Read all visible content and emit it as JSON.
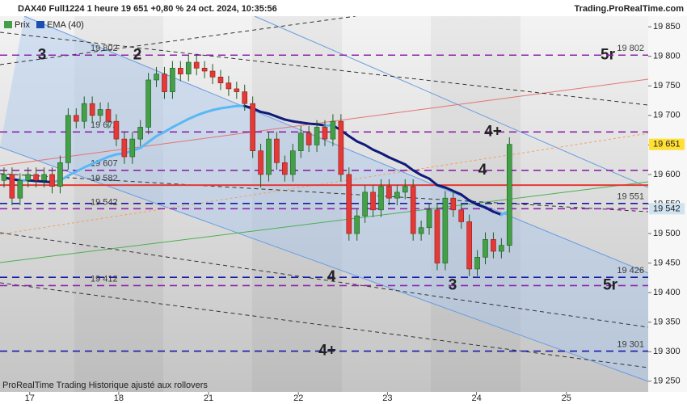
{
  "chart_data": {
    "type": "candlestick",
    "title": "DAX40 Full1224 1 heure 19 651 +0,80 % 24 oct. 2024, 10:35:56",
    "source": "Trading.ProRealTime.com",
    "footnote": "ProRealTime Trading Historique ajusté aux rollovers",
    "legend": [
      "Prix",
      "EMA (40)"
    ],
    "up_color": "#43a047",
    "down_color": "#e53935",
    "x": [
      0,
      1,
      2,
      3,
      4,
      5,
      6,
      7,
      8,
      9,
      10,
      11,
      12,
      13,
      14,
      15,
      16,
      17,
      18,
      19,
      20,
      21,
      22,
      23,
      24,
      25,
      26,
      27,
      28,
      29,
      30,
      31,
      32,
      33,
      34,
      35,
      36,
      37,
      38,
      39,
      40,
      41,
      42,
      43,
      44,
      45,
      46,
      47,
      48,
      49,
      50,
      51,
      52,
      53,
      54,
      55,
      56,
      57,
      58,
      59,
      60,
      61,
      62,
      63
    ],
    "open": [
      19590,
      19600,
      19560,
      19590,
      19600,
      19590,
      19600,
      19580,
      19620,
      19700,
      19690,
      19720,
      19700,
      19710,
      19690,
      19660,
      19630,
      19660,
      19680,
      19760,
      19770,
      19740,
      19780,
      19770,
      19790,
      19780,
      19775,
      19765,
      19755,
      19745,
      19740,
      19720,
      19640,
      19600,
      19660,
      19620,
      19600,
      19640,
      19670,
      19650,
      19680,
      19660,
      19690,
      19600,
      19500,
      19530,
      19570,
      19540,
      19580,
      19560,
      19570,
      19580,
      19500,
      19510,
      19540,
      19450,
      19560,
      19540,
      19520,
      19440,
      19460,
      19490,
      19470,
      19480
    ],
    "high": [
      19612,
      19612,
      19602,
      19612,
      19612,
      19612,
      19612,
      19632,
      19712,
      19712,
      19732,
      19732,
      19722,
      19722,
      19702,
      19672,
      19672,
      19692,
      19772,
      19782,
      19782,
      19792,
      19792,
      19802,
      19802,
      19792,
      19787,
      19777,
      19767,
      19757,
      19752,
      19732,
      19652,
      19672,
      19672,
      19632,
      19652,
      19682,
      19682,
      19692,
      19692,
      19702,
      19702,
      19612,
      19542,
      19582,
      19582,
      19592,
      19592,
      19582,
      19592,
      19592,
      19522,
      19552,
      19552,
      19572,
      19572,
      19552,
      19532,
      19472,
      19502,
      19502,
      19492,
      19663
    ],
    "low": [
      19578,
      19548,
      19548,
      19578,
      19578,
      19578,
      19568,
      19568,
      19608,
      19678,
      19678,
      19688,
      19688,
      19678,
      19648,
      19618,
      19618,
      19648,
      19668,
      19748,
      19728,
      19728,
      19758,
      19758,
      19768,
      19763,
      19753,
      19743,
      19733,
      19728,
      19708,
      19628,
      19578,
      19588,
      19608,
      19588,
      19588,
      19628,
      19638,
      19638,
      19648,
      19648,
      19588,
      19488,
      19488,
      19518,
      19528,
      19528,
      19548,
      19548,
      19558,
      19488,
      19488,
      19498,
      19438,
      19438,
      19528,
      19508,
      19428,
      19428,
      19448,
      19458,
      19458,
      19468
    ],
    "close": [
      19600,
      19560,
      19590,
      19600,
      19590,
      19600,
      19580,
      19620,
      19700,
      19690,
      19720,
      19700,
      19710,
      19690,
      19660,
      19630,
      19660,
      19680,
      19760,
      19770,
      19740,
      19780,
      19770,
      19790,
      19780,
      19775,
      19765,
      19755,
      19745,
      19740,
      19720,
      19640,
      19600,
      19660,
      19620,
      19600,
      19640,
      19670,
      19650,
      19680,
      19660,
      19690,
      19600,
      19500,
      19530,
      19570,
      19540,
      19580,
      19560,
      19570,
      19580,
      19500,
      19510,
      19540,
      19450,
      19560,
      19540,
      19520,
      19440,
      19460,
      19490,
      19470,
      19480,
      19651
    ],
    "ema": {
      "name": "EMA (40)",
      "rising_color": "#5ab8f5",
      "falling_color": "#101a7a",
      "values": [
        19595,
        19592,
        19590,
        19590,
        19589,
        19588,
        19587,
        19590,
        19598,
        19605,
        19612,
        19618,
        19624,
        19630,
        19634,
        19636,
        19640,
        19645,
        19655,
        19665,
        19672,
        19680,
        19687,
        19694,
        19700,
        19705,
        19709,
        19712,
        19714,
        19716,
        19716,
        19712,
        19706,
        19703,
        19698,
        19693,
        19690,
        19688,
        19686,
        19685,
        19683,
        19683,
        19675,
        19665,
        19656,
        19650,
        19642,
        19636,
        19629,
        19623,
        19617,
        19607,
        19599,
        19593,
        19582,
        19578,
        19572,
        19566,
        19556,
        19549,
        19544,
        19537,
        19532,
        19538
      ]
    },
    "xlim": [
      -0.5,
      80.3
    ],
    "xticks": [
      {
        "value": 3.2,
        "label": "17"
      },
      {
        "value": 14.3,
        "label": "18"
      },
      {
        "value": 25.5,
        "label": "21"
      },
      {
        "value": 36.7,
        "label": "22"
      },
      {
        "value": 47.8,
        "label": "23"
      },
      {
        "value": 58.9,
        "label": "24"
      },
      {
        "value": 70.1,
        "label": "25"
      }
    ],
    "ylim": [
      19232,
      19868
    ],
    "yticks": [
      {
        "value": 19850,
        "label": "19 850"
      },
      {
        "value": 19800,
        "label": "19 800"
      },
      {
        "value": 19750,
        "label": "19 750"
      },
      {
        "value": 19700,
        "label": "19 700"
      },
      {
        "value": 19650,
        "label": "19 650"
      },
      {
        "value": 19600,
        "label": "19 600"
      },
      {
        "value": 19550,
        "label": "19 550"
      },
      {
        "value": 19500,
        "label": "19 500"
      },
      {
        "value": 19450,
        "label": "19 450"
      },
      {
        "value": 19400,
        "label": "19 400"
      },
      {
        "value": 19350,
        "label": "19 350"
      },
      {
        "value": 19300,
        "label": "19 300"
      },
      {
        "value": 19250,
        "label": "19 250"
      }
    ],
    "levels": [
      {
        "value": 19802,
        "label": "19 802",
        "color": "#1a1aa6",
        "label_side": "right",
        "tags": [
          "3",
          "5r"
        ]
      },
      {
        "value": 19802,
        "label": "19 802",
        "color": "#8e24aa",
        "label_side": "left",
        "tags": [
          "2"
        ]
      },
      {
        "value": 19672,
        "label": "19 672",
        "color": "#8e24aa",
        "label_side": "left",
        "tags": [
          "4+"
        ]
      },
      {
        "value": 19607,
        "label": "19 607",
        "color": "#8e24aa",
        "label_side": "left",
        "tags": [
          "4"
        ]
      },
      {
        "value": 19582,
        "label": "19 582",
        "color": "#e53935",
        "label_side": "left",
        "style": "solid",
        "tags": []
      },
      {
        "value": 19551,
        "label": "19 551",
        "color": "#1a1aa6",
        "label_side": "right",
        "tags": []
      },
      {
        "value": 19542,
        "label": "19 542",
        "color": "#8e24aa",
        "label_side": "left",
        "tags": []
      },
      {
        "value": 19426,
        "label": "19 426",
        "color": "#1a1aa6",
        "label_side": "right",
        "tags": [
          "4"
        ]
      },
      {
        "value": 19412,
        "label": "19 412",
        "color": "#8e24aa",
        "label_side": "left",
        "tags": [
          "3",
          "5r"
        ]
      },
      {
        "value": 19301,
        "label": "19 301",
        "color": "#1a1aa6",
        "label_side": "right",
        "tags": [
          "4+"
        ]
      }
    ],
    "badges": [
      {
        "value": 19651,
        "label": "19 651",
        "color": "#ffe033"
      },
      {
        "value": 19542,
        "label": "19 542",
        "color": "#cfe3f0"
      }
    ]
  }
}
